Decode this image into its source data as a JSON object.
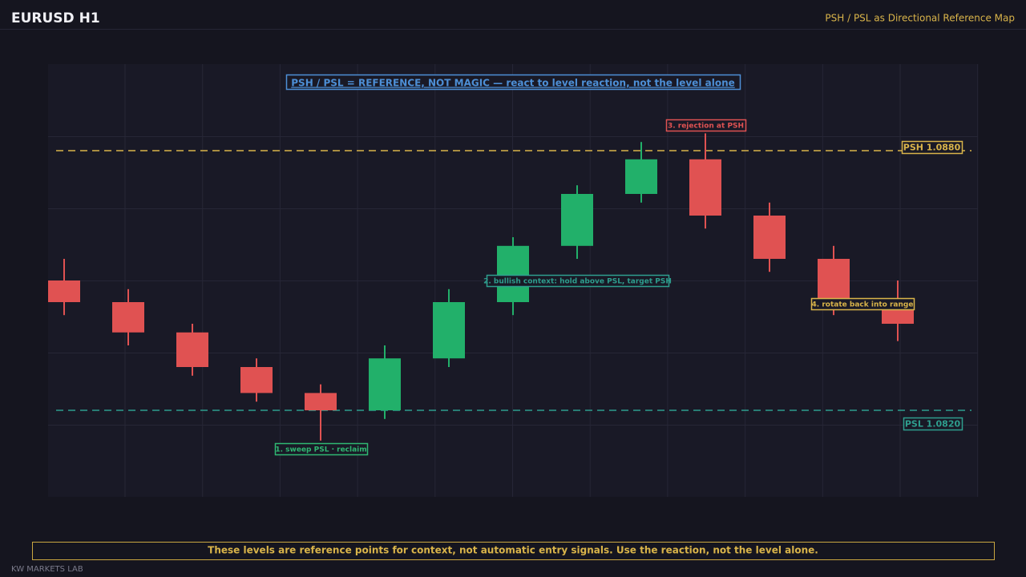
{
  "chart_data": {
    "type": "candlestick",
    "title": "EURUSD  H1",
    "subtitle": "PSH / PSL as Directional Reference Map",
    "banner": "PSH / PSL = REFERENCE, NOT MAGIC  —  react to level reaction, not the level alone",
    "open": [
      1.085,
      1.0845,
      1.0838,
      1.083,
      1.0824,
      1.082,
      1.0832,
      1.0845,
      1.0858,
      1.087,
      1.0878,
      1.0865,
      1.0855,
      1.0844
    ],
    "high": [
      1.0855,
      1.0848,
      1.084,
      1.0832,
      1.0826,
      1.0835,
      1.0848,
      1.086,
      1.0872,
      1.0882,
      1.0884,
      1.0868,
      1.0858,
      1.085
    ],
    "low": [
      1.0842,
      1.0835,
      1.0828,
      1.0822,
      1.0813,
      1.0818,
      1.083,
      1.0842,
      1.0855,
      1.0868,
      1.0862,
      1.0852,
      1.0842,
      1.0836
    ],
    "close": [
      1.0845,
      1.0838,
      1.083,
      1.0824,
      1.082,
      1.0832,
      1.0845,
      1.0858,
      1.087,
      1.0878,
      1.0865,
      1.0855,
      1.0844,
      1.084
    ],
    "up_color": "#22b06a",
    "down_color": "#e05252",
    "ylim": [
      1.08,
      1.09
    ],
    "grid": true,
    "levels": [
      {
        "value": 1.088,
        "label": "PSH 1.0880",
        "color": "#d9b44a"
      },
      {
        "value": 1.082,
        "label": "PSL 1.0820",
        "color": "#2e9e8e"
      }
    ],
    "annotations": [
      {
        "text": "1. sweep PSL · reclaim",
        "color": "#2fb872"
      },
      {
        "text": "2. bullish context: hold above PSL, target PSH",
        "color": "#2e9e8e"
      },
      {
        "text": "3. rejection at PSH",
        "color": "#e05252"
      },
      {
        "text": "4. rotate back into range",
        "color": "#d9b44a"
      }
    ],
    "note": "These levels are reference points for context, not automatic entry signals. Use the reaction, not the level alone.",
    "brand": "KW MARKETS LAB"
  }
}
